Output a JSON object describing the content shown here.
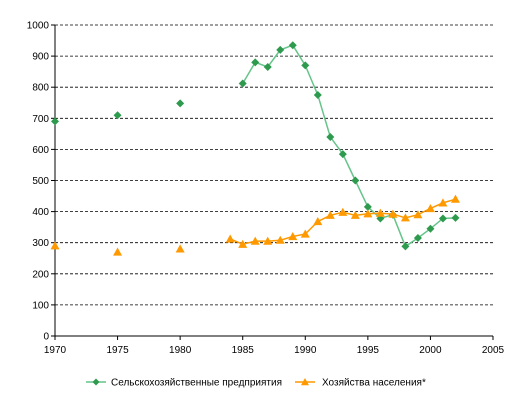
{
  "chart_data": {
    "type": "line",
    "title": "",
    "xlabel": "",
    "ylabel": "",
    "xlim": [
      1970,
      2005
    ],
    "ylim": [
      0,
      1000
    ],
    "xticks": [
      1970,
      1975,
      1980,
      1985,
      1990,
      1995,
      2000,
      2005
    ],
    "yticks": [
      0,
      100,
      200,
      300,
      400,
      500,
      600,
      700,
      800,
      900,
      1000
    ],
    "grid": "horizontal dashed",
    "legend_position": "bottom",
    "series": [
      {
        "name": "Сельскохозяйственные предприятия",
        "color": "#2e9a4e",
        "line_color": "#66c48a",
        "marker": "diamond",
        "points": [
          {
            "x": 1970,
            "y": 690,
            "connected": false
          },
          {
            "x": 1975,
            "y": 710,
            "connected": false
          },
          {
            "x": 1980,
            "y": 748,
            "connected": false
          },
          {
            "x": 1985,
            "y": 812,
            "connected": true
          },
          {
            "x": 1986,
            "y": 880,
            "connected": true
          },
          {
            "x": 1987,
            "y": 865,
            "connected": true
          },
          {
            "x": 1988,
            "y": 920,
            "connected": true
          },
          {
            "x": 1989,
            "y": 935,
            "connected": true
          },
          {
            "x": 1990,
            "y": 870,
            "connected": true
          },
          {
            "x": 1991,
            "y": 775,
            "connected": true
          },
          {
            "x": 1992,
            "y": 640,
            "connected": true
          },
          {
            "x": 1993,
            "y": 585,
            "connected": true
          },
          {
            "x": 1994,
            "y": 500,
            "connected": true
          },
          {
            "x": 1995,
            "y": 415,
            "connected": true
          },
          {
            "x": 1996,
            "y": 378,
            "connected": true
          },
          {
            "x": 1997,
            "y": 390,
            "connected": true
          },
          {
            "x": 1998,
            "y": 288,
            "connected": true
          },
          {
            "x": 1999,
            "y": 315,
            "connected": true
          },
          {
            "x": 2000,
            "y": 345,
            "connected": true
          },
          {
            "x": 2001,
            "y": 378,
            "connected": true
          },
          {
            "x": 2002,
            "y": 380,
            "connected": true
          }
        ]
      },
      {
        "name": "Хозяйства населения*",
        "color": "#ff9900",
        "line_color": "#ff9900",
        "marker": "triangle",
        "points": [
          {
            "x": 1970,
            "y": 290,
            "connected": false
          },
          {
            "x": 1975,
            "y": 270,
            "connected": false
          },
          {
            "x": 1980,
            "y": 280,
            "connected": false
          },
          {
            "x": 1984,
            "y": 312,
            "connected": true
          },
          {
            "x": 1985,
            "y": 295,
            "connected": true
          },
          {
            "x": 1986,
            "y": 305,
            "connected": true
          },
          {
            "x": 1987,
            "y": 305,
            "connected": true
          },
          {
            "x": 1988,
            "y": 308,
            "connected": true
          },
          {
            "x": 1989,
            "y": 320,
            "connected": true
          },
          {
            "x": 1990,
            "y": 328,
            "connected": true
          },
          {
            "x": 1991,
            "y": 368,
            "connected": true
          },
          {
            "x": 1992,
            "y": 388,
            "connected": true
          },
          {
            "x": 1993,
            "y": 398,
            "connected": true
          },
          {
            "x": 1994,
            "y": 388,
            "connected": true
          },
          {
            "x": 1995,
            "y": 393,
            "connected": true
          },
          {
            "x": 1996,
            "y": 395,
            "connected": true
          },
          {
            "x": 1997,
            "y": 392,
            "connected": true
          },
          {
            "x": 1998,
            "y": 380,
            "connected": true
          },
          {
            "x": 1999,
            "y": 390,
            "connected": true
          },
          {
            "x": 2000,
            "y": 410,
            "connected": true
          },
          {
            "x": 2001,
            "y": 428,
            "connected": true
          },
          {
            "x": 2002,
            "y": 440,
            "connected": true
          }
        ]
      }
    ]
  }
}
